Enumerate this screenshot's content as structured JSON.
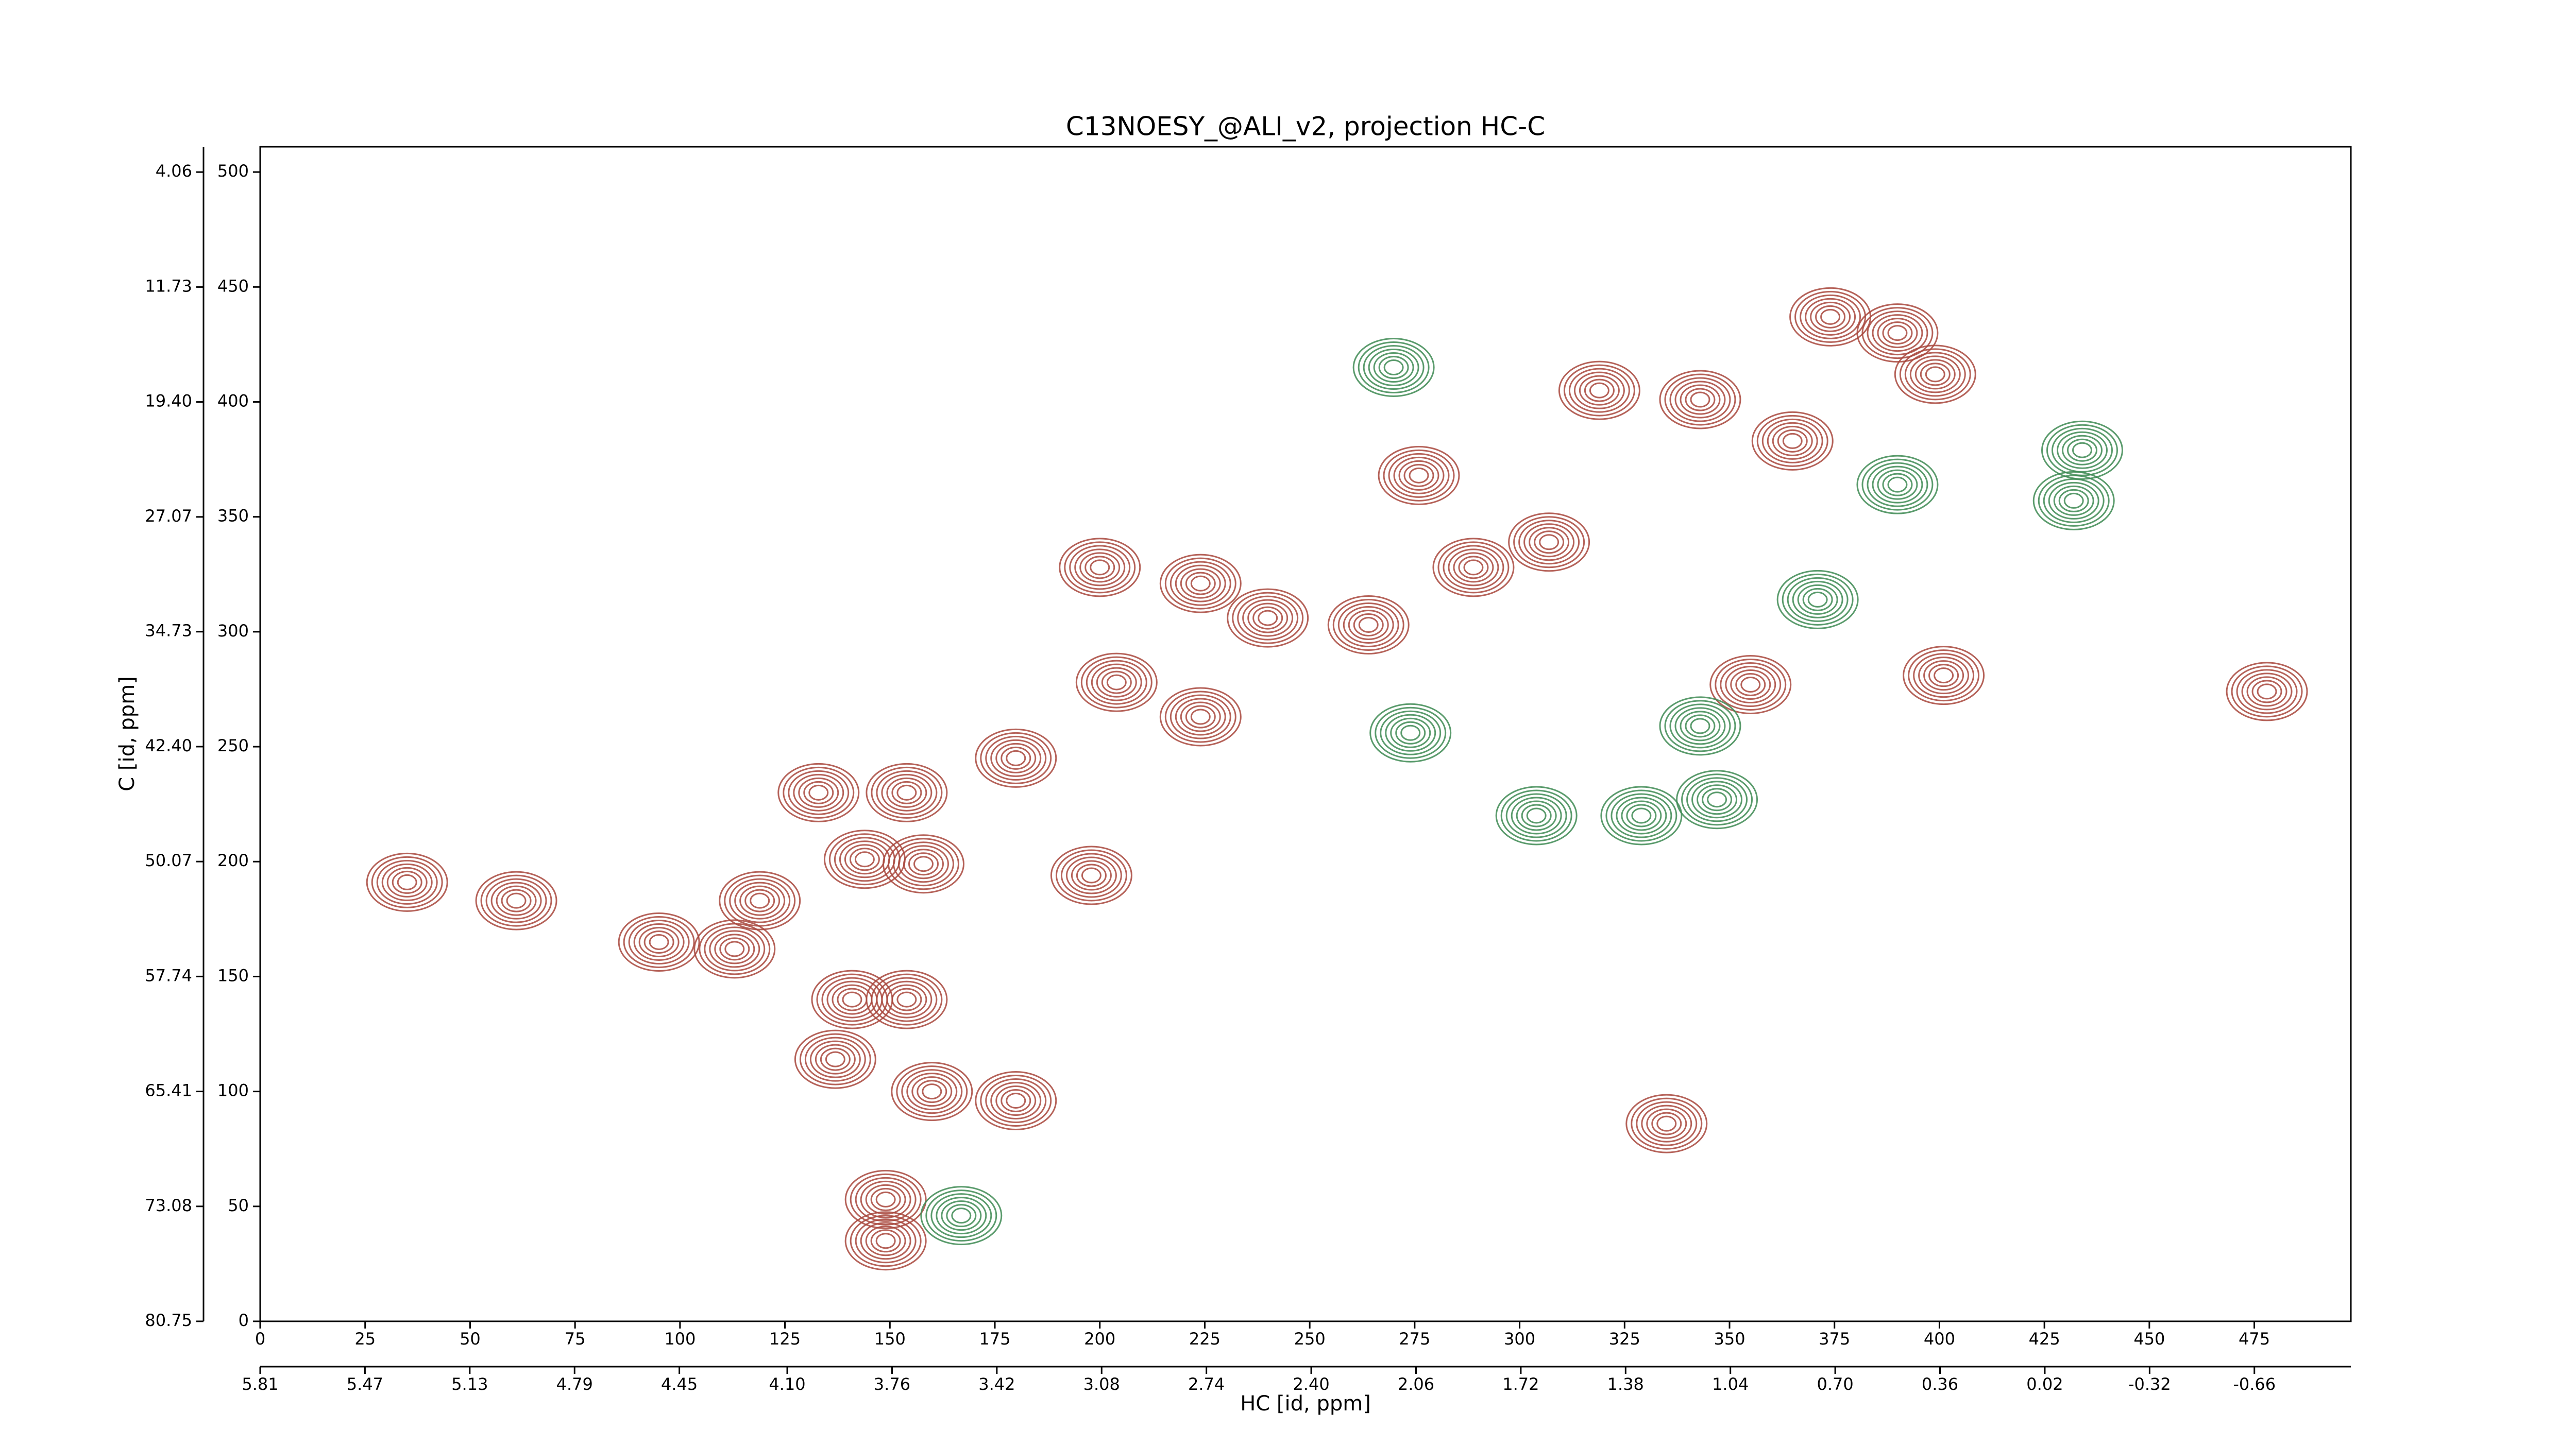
{
  "chart_data": {
    "type": "contour",
    "title": "C13NOESY_@ALI_v2, projection HC-C",
    "xlabel": "HC [id, ppm]",
    "ylabel": "C [id, ppm]",
    "xlim": [
      0,
      498
    ],
    "xticks": [
      0,
      25,
      50,
      75,
      100,
      125,
      150,
      175,
      200,
      225,
      250,
      275,
      300,
      325,
      350,
      375,
      400,
      425,
      450,
      475
    ],
    "ylim": [
      0,
      511
    ],
    "yticks": [
      0,
      50,
      100,
      150,
      200,
      250,
      300,
      350,
      400,
      450,
      500
    ],
    "x2lim": [
      5.81,
      -0.973
    ],
    "x2ticks": [
      5.81,
      5.47,
      5.13,
      4.79,
      4.45,
      {
        "value": 4.1,
        "label": "4.10"
      },
      3.76,
      3.42,
      3.08,
      2.74,
      {
        "value": 2.4,
        "label": "2.40"
      },
      2.06,
      1.72,
      1.38,
      1.04,
      {
        "value": 0.7,
        "label": "0.70"
      },
      0.36,
      0.02,
      -0.32,
      -0.66
    ],
    "y2lim": [
      80.75,
      2.37
    ],
    "y2ticks": [
      80.75,
      73.08,
      65.41,
      57.74,
      50.07,
      {
        "value": 42.4,
        "label": "42.40"
      },
      34.73,
      27.07,
      {
        "value": 19.4,
        "label": "19.40"
      },
      11.73,
      4.06
    ],
    "series": [
      {
        "color": "#a8463c",
        "x": [
          200,
          224,
          240,
          264,
          289,
          307,
          319,
          343,
          365,
          374,
          390,
          399,
          204,
          224,
          180,
          133,
          154,
          144,
          158,
          119,
          95,
          113,
          141,
          154,
          137,
          180,
          160,
          149,
          149,
          35,
          61,
          198,
          335,
          401,
          478,
          355,
          276
        ],
        "y": [
          328,
          321,
          306,
          303,
          328,
          339,
          405,
          401,
          383,
          437,
          430,
          412,
          278,
          263,
          245,
          230,
          230,
          201,
          199,
          183,
          165,
          162,
          140,
          140,
          114,
          96,
          100,
          53,
          35,
          191,
          183,
          194,
          86,
          281,
          274,
          277,
          368
        ]
      },
      {
        "color": "#3d8a52",
        "x": [
          434,
          432,
          274,
          304,
          329,
          347,
          343,
          270,
          167,
          390,
          371
        ],
        "y": [
          379,
          357,
          256,
          220,
          220,
          227,
          259,
          415,
          46,
          364,
          314
        ]
      }
    ]
  }
}
